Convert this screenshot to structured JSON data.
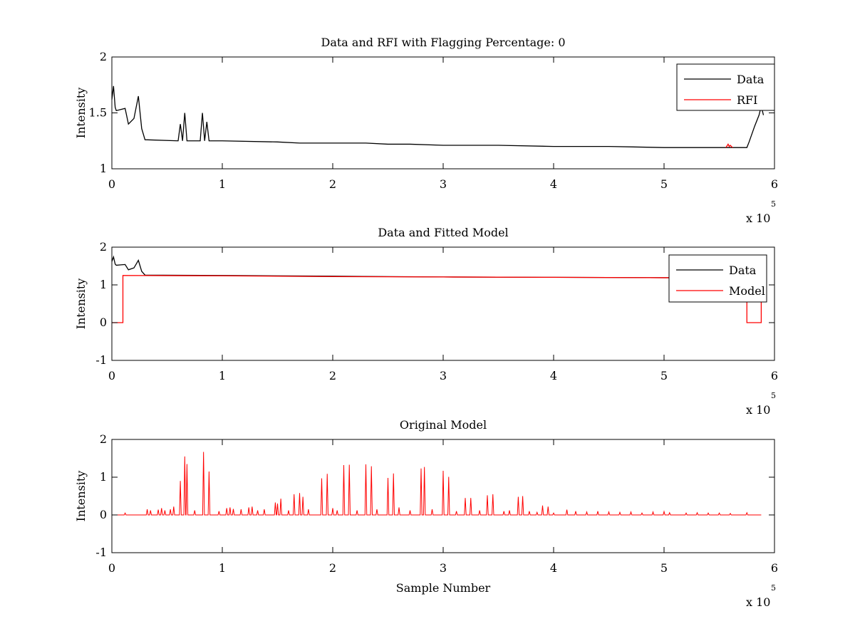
{
  "chart_data": [
    {
      "type": "line",
      "title": "Data and RFI with Flagging Percentage: 0",
      "xlabel": "",
      "ylabel": "Intensity",
      "xlim": [
        0,
        600000
      ],
      "ylim": [
        1,
        2
      ],
      "x_ticks": [
        "0",
        "1",
        "2",
        "3",
        "4",
        "5",
        "6"
      ],
      "y_ticks": [
        "1",
        "1.5",
        "2"
      ],
      "x_exponent_base": "x 10",
      "x_exponent_power": "5",
      "grid": false,
      "legend_position": "top-right",
      "series": [
        {
          "name": "Data",
          "color": "#000000",
          "x": [
            0,
            1500,
            3000,
            4000,
            8000,
            12000,
            15000,
            20000,
            24000,
            27000,
            30000,
            60000,
            62000,
            64000,
            66000,
            68000,
            70000,
            80000,
            82000,
            84000,
            86000,
            88000,
            90000,
            100000,
            150000,
            170000,
            190000,
            210000,
            230000,
            250000,
            270000,
            300000,
            350000,
            400000,
            450000,
            500000,
            550000,
            575000,
            577000,
            582000,
            586000,
            588000,
            590000
          ],
          "values": [
            1.62,
            1.74,
            1.55,
            1.52,
            1.53,
            1.54,
            1.4,
            1.45,
            1.65,
            1.36,
            1.26,
            1.25,
            1.4,
            1.25,
            1.5,
            1.25,
            1.25,
            1.25,
            1.5,
            1.25,
            1.42,
            1.25,
            1.25,
            1.25,
            1.24,
            1.23,
            1.23,
            1.23,
            1.23,
            1.22,
            1.22,
            1.21,
            1.21,
            1.2,
            1.2,
            1.19,
            1.19,
            1.19,
            1.24,
            1.38,
            1.48,
            1.56,
            1.48
          ]
        },
        {
          "name": "RFI",
          "color": "#ff0000",
          "x": [
            556000,
            558000,
            559000,
            560000,
            562000
          ],
          "values": [
            1.19,
            1.22,
            1.2,
            1.21,
            1.19
          ]
        }
      ]
    },
    {
      "type": "line",
      "title": "Data and Fitted Model",
      "xlabel": "",
      "ylabel": "Intensity",
      "xlim": [
        0,
        600000
      ],
      "ylim": [
        -1,
        2
      ],
      "x_ticks": [
        "0",
        "1",
        "2",
        "3",
        "4",
        "5",
        "6"
      ],
      "y_ticks": [
        "-1",
        "0",
        "1",
        "2"
      ],
      "x_exponent_base": "x 10",
      "x_exponent_power": "5",
      "grid": false,
      "legend_position": "top-right",
      "series": [
        {
          "name": "Data",
          "color": "#000000",
          "x": [
            0,
            1500,
            3000,
            4000,
            8000,
            12000,
            15000,
            20000,
            24000,
            27000,
            30000,
            100000,
            200000,
            300000,
            400000,
            500000,
            575000,
            580000,
            585000,
            588000,
            590000
          ],
          "values": [
            1.62,
            1.74,
            1.55,
            1.52,
            1.53,
            1.54,
            1.4,
            1.45,
            1.65,
            1.36,
            1.26,
            1.25,
            1.23,
            1.21,
            1.2,
            1.19,
            1.19,
            1.3,
            1.45,
            1.55,
            1.48
          ]
        },
        {
          "name": "Model",
          "color": "#ff0000",
          "x": [
            0,
            10000,
            10001,
            100000,
            200000,
            300000,
            400000,
            500000,
            575000,
            575001,
            588000,
            588001,
            590000
          ],
          "values": [
            0,
            0,
            1.25,
            1.24,
            1.22,
            1.21,
            1.2,
            1.19,
            1.19,
            0,
            0,
            1.19,
            1.19
          ]
        }
      ]
    },
    {
      "type": "line",
      "title": "Original Model",
      "xlabel": "Sample Number",
      "ylabel": "Intensity",
      "xlim": [
        0,
        600000
      ],
      "ylim": [
        -1,
        2
      ],
      "x_ticks": [
        "0",
        "1",
        "2",
        "3",
        "4",
        "5",
        "6"
      ],
      "y_ticks": [
        "-1",
        "0",
        "1",
        "2"
      ],
      "x_exponent_base": "x 10",
      "x_exponent_power": "5",
      "grid": false,
      "series": [
        {
          "color": "#ff0000",
          "baseline": [
            0,
            588000,
            0
          ],
          "peaks_x": [
            12000,
            32000,
            35000,
            42000,
            45000,
            48000,
            53000,
            56000,
            62000,
            66000,
            68000,
            75000,
            83000,
            88000,
            97000,
            104000,
            107000,
            110000,
            117000,
            124000,
            127000,
            132000,
            138000,
            148000,
            150000,
            153000,
            160000,
            165000,
            170000,
            173000,
            178000,
            190000,
            195000,
            200000,
            204000,
            210000,
            215000,
            222000,
            230000,
            235000,
            240000,
            250000,
            255000,
            260000,
            270000,
            280000,
            283000,
            290000,
            300000,
            305000,
            312000,
            320000,
            325000,
            333000,
            340000,
            345000,
            355000,
            360000,
            368000,
            372000,
            378000,
            385000,
            390000,
            395000,
            400000,
            412000,
            420000,
            430000,
            440000,
            450000,
            460000,
            470000,
            480000,
            490000,
            500000,
            505000,
            520000,
            530000,
            540000,
            550000,
            560000,
            575000
          ],
          "peaks_y": [
            0.05,
            0.15,
            0.12,
            0.14,
            0.18,
            0.12,
            0.15,
            0.22,
            0.9,
            1.55,
            1.35,
            0.12,
            1.67,
            1.15,
            0.1,
            0.18,
            0.2,
            0.16,
            0.15,
            0.2,
            0.22,
            0.12,
            0.15,
            0.33,
            0.3,
            0.43,
            0.12,
            0.55,
            0.58,
            0.48,
            0.15,
            0.97,
            1.09,
            0.18,
            0.12,
            1.32,
            1.33,
            0.12,
            1.34,
            1.29,
            0.15,
            0.98,
            1.1,
            0.2,
            0.12,
            1.23,
            1.27,
            0.15,
            1.17,
            1.01,
            0.1,
            0.45,
            0.45,
            0.12,
            0.52,
            0.55,
            0.1,
            0.12,
            0.48,
            0.5,
            0.1,
            0.07,
            0.25,
            0.22,
            0.05,
            0.14,
            0.1,
            0.08,
            0.1,
            0.08,
            0.07,
            0.08,
            0.05,
            0.08,
            0.09,
            0.06,
            0.05,
            0.06,
            0.05,
            0.05,
            0.04,
            0.06
          ]
        }
      ]
    }
  ]
}
